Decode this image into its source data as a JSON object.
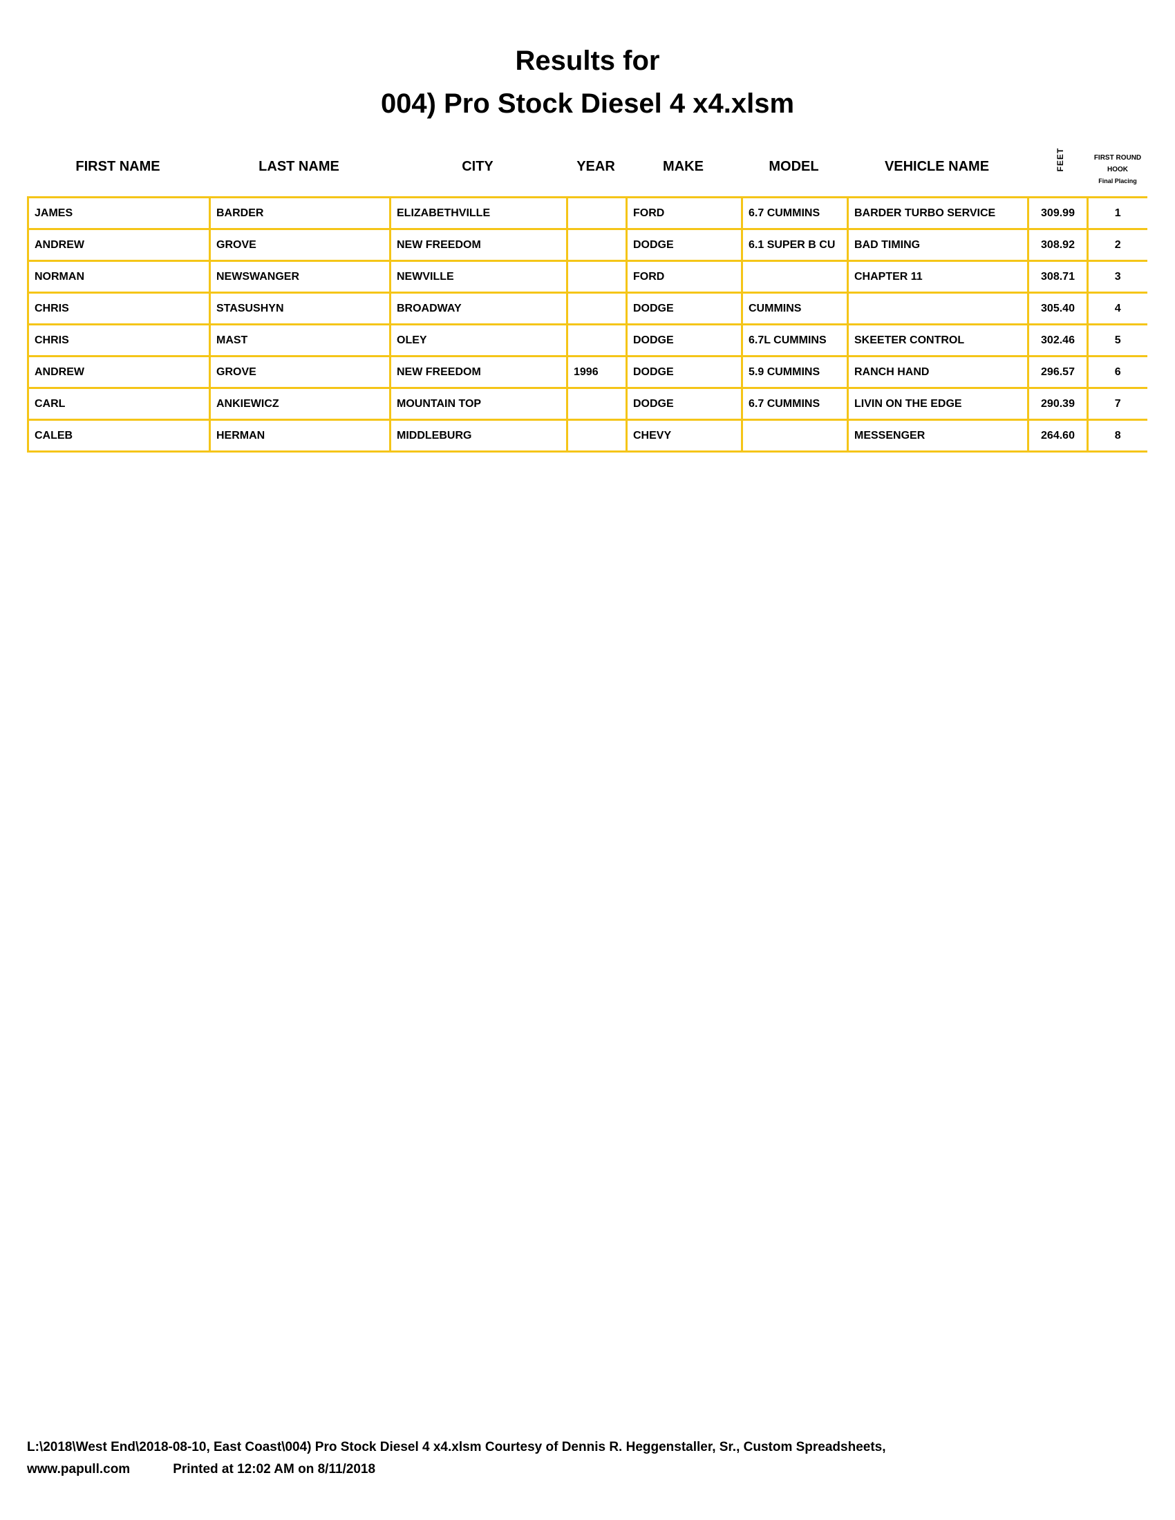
{
  "title": {
    "line1": "Results for",
    "line2": "004) Pro Stock Diesel 4 x4.xlsm"
  },
  "headers": {
    "first_name": "FIRST NAME",
    "last_name": "LAST NAME",
    "city": "CITY",
    "year": "YEAR",
    "make": "MAKE",
    "model": "MODEL",
    "vehicle_name": "VEHICLE NAME",
    "feet": "FEET",
    "placing_line1": "FIRST ROUND",
    "placing_line2": "HOOK",
    "placing_line3": "Final Placing"
  },
  "rows": [
    [
      "JAMES",
      "BARDER",
      "ELIZABETHVILLE",
      "",
      "FORD",
      "6.7 CUMMINS",
      "BARDER TURBO SERVICE",
      "309.99",
      "1"
    ],
    [
      "ANDREW",
      "GROVE",
      "NEW FREEDOM",
      "",
      "DODGE",
      "6.1 SUPER B CU",
      "BAD TIMING",
      "308.92",
      "2"
    ],
    [
      "NORMAN",
      "NEWSWANGER",
      "NEWVILLE",
      "",
      "FORD",
      "",
      "CHAPTER 11",
      "308.71",
      "3"
    ],
    [
      "CHRIS",
      "STASUSHYN",
      "BROADWAY",
      "",
      "DODGE",
      "CUMMINS",
      "",
      "305.40",
      "4"
    ],
    [
      "CHRIS",
      "MAST",
      "OLEY",
      "",
      "DODGE",
      "6.7L CUMMINS",
      "SKEETER CONTROL",
      "302.46",
      "5"
    ],
    [
      "ANDREW",
      "GROVE",
      "NEW FREEDOM",
      "1996",
      "DODGE",
      "5.9 CUMMINS",
      "RANCH HAND",
      "296.57",
      "6"
    ],
    [
      "CARL",
      "ANKIEWICZ",
      "MOUNTAIN TOP",
      "",
      "DODGE",
      "6.7 CUMMINS",
      "LIVIN ON THE EDGE",
      "290.39",
      "7"
    ],
    [
      "CALEB",
      "HERMAN",
      "MIDDLEBURG",
      "",
      "CHEVY",
      "",
      "MESSENGER",
      "264.60",
      "8"
    ]
  ],
  "footer": {
    "line1": "L:\\2018\\West End\\2018-08-10, East Coast\\004) Pro Stock Diesel 4 x4.xlsm  Courtesy of Dennis R. Heggenstaller, Sr., Custom Spreadsheets,",
    "website": "www.papull.com",
    "printed": "Printed at 12:02 AM on 8/11/2018"
  },
  "colors": {
    "grid": "#f5c518"
  }
}
